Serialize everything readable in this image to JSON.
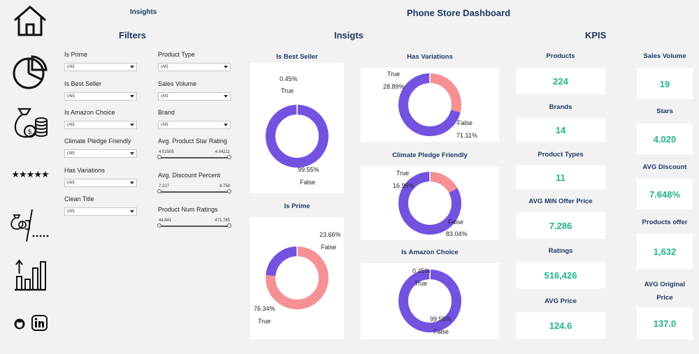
{
  "header": {
    "tab": "Insights",
    "title": "Phone Store Dashboard"
  },
  "sections": {
    "filters": "Filters",
    "insights": "Insigts",
    "kpis": "KPIS"
  },
  "nav": {
    "icons": [
      "home-icon",
      "pie-chart-icon",
      "money-bag-icon",
      "stars-icon",
      "discount-icon",
      "bar-chart-icon",
      "github-icon",
      "linkedin-icon"
    ]
  },
  "filters": {
    "left": [
      {
        "label": "Is Prime",
        "value": "(All)"
      },
      {
        "label": "Is Best Seller",
        "value": "(All)"
      },
      {
        "label": "Is Amazon Choice",
        "value": "(All)"
      },
      {
        "label": "Climate Pledge Friendly",
        "value": "(All)"
      },
      {
        "label": "Has Variations",
        "value": "(All)"
      },
      {
        "label": "Clean Title",
        "value": "(All)"
      }
    ],
    "right_dropdowns": [
      {
        "label": "Product Type",
        "value": "(All)"
      },
      {
        "label": "Sales Volume",
        "value": "(All)"
      },
      {
        "label": "Brand",
        "value": "(All)"
      }
    ],
    "sliders": [
      {
        "label": "Avg. Product Star Rating",
        "min": "4.01505",
        "max": "4.04211"
      },
      {
        "label": "Avg. Discount Percent",
        "min": "7.217",
        "max": "9.758"
      },
      {
        "label": "Product Num Ratings",
        "min": "44,641",
        "max": "471,785"
      }
    ]
  },
  "colors": {
    "false_color": "#7352e0",
    "true_color": "#f59094",
    "kpi_value": "#22b38a",
    "heading": "#1f3864"
  },
  "chart_data": [
    {
      "type": "pie",
      "title": "Is Best Seller",
      "categories": [
        "True",
        "False"
      ],
      "values": [
        0.45,
        99.55
      ],
      "labels": [
        "0.45%",
        "99.55%"
      ]
    },
    {
      "type": "pie",
      "title": "Is Prime",
      "categories": [
        "True",
        "False"
      ],
      "values": [
        76.34,
        23.66
      ],
      "labels": [
        "76.34%",
        "23.66%"
      ]
    },
    {
      "type": "pie",
      "title": "Has Variations",
      "categories": [
        "True",
        "False"
      ],
      "values": [
        28.89,
        71.11
      ],
      "labels": [
        "28.89%",
        "71.11%"
      ]
    },
    {
      "type": "pie",
      "title": "Climate Pledge Friendly",
      "categories": [
        "True",
        "False"
      ],
      "values": [
        16.96,
        83.04
      ],
      "labels": [
        "16.96%",
        "83.04%"
      ]
    },
    {
      "type": "pie",
      "title": "Is Amazon Choice",
      "categories": [
        "True",
        "False"
      ],
      "values": [
        0.45,
        99.55
      ],
      "labels": [
        "0.45%",
        "99.55%"
      ]
    }
  ],
  "kpis": {
    "left": [
      {
        "title": "Products",
        "value": "224"
      },
      {
        "title": "Brands",
        "value": "14"
      },
      {
        "title": "Product Types",
        "value": "11"
      },
      {
        "title": "AVG MIN Offer Price",
        "value": "7.286"
      },
      {
        "title": "Ratings",
        "value": "516,426"
      },
      {
        "title": "AVG Price",
        "value": "124.6"
      }
    ],
    "right": [
      {
        "title": "Sales Volume",
        "value": "19"
      },
      {
        "title": "Stars",
        "value": "4.020"
      },
      {
        "title": "AVG Discount",
        "value": "7.648%"
      },
      {
        "title": "Products offer",
        "value": "1,632"
      },
      {
        "title": "AVG Original Price",
        "value": "137.0"
      }
    ]
  }
}
